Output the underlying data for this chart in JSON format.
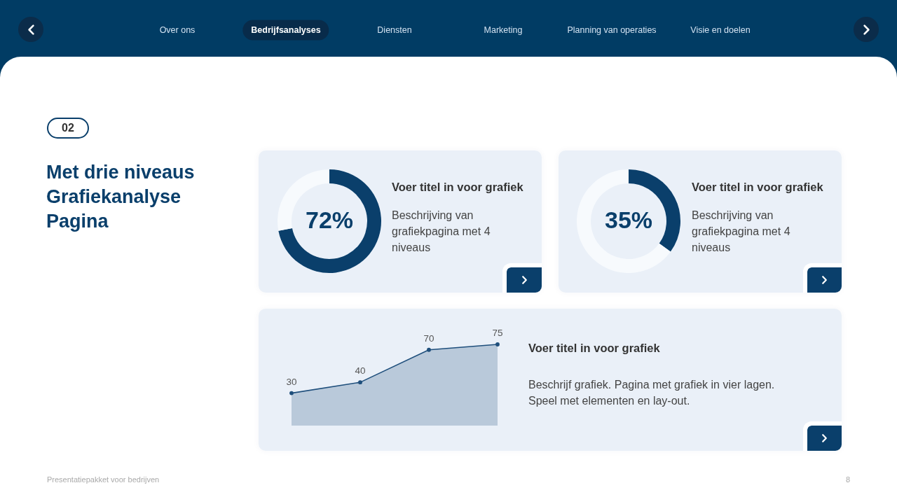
{
  "chart_data": [
    {
      "type": "other",
      "annotations": [
        "Over ons",
        "Bedrijfsanalyses",
        "Diensten",
        "Marketing",
        "Planning van operaties",
        "Visie en doelen"
      ]
    },
    {
      "type": "other",
      "title": "Met drie niveaus Grafiekanalyse Pagina",
      "annotations": [
        "02",
        "Presentatiepakket voor bedrijven",
        "8"
      ]
    },
    {
      "type": "donut",
      "title": "Voer titel in voor grafiek",
      "subtitle": "Beschrijving van grafiekpagina met 4 niveaus",
      "categories": [
        null,
        null
      ],
      "values": [
        72,
        28
      ],
      "colors": [
        "#0a3f6b",
        "#f7fafd"
      ],
      "value_labels": [
        "72%",
        null
      ]
    },
    {
      "type": "donut",
      "title": "Voer titel in voor grafiek",
      "subtitle": "Beschrijving van grafiekpagina met 4 niveaus",
      "categories": [
        null,
        null
      ],
      "values": [
        35,
        65
      ],
      "colors": [
        "#0a3f6b",
        "#f7fafd"
      ],
      "value_labels": [
        "35%",
        null
      ]
    },
    {
      "type": "area",
      "title": "Voer titel in voor grafiek",
      "subtitle": "Beschrijf grafiek. Pagina met grafiek in vier lagen. Speel met elementen en lay-out.",
      "categories": [
        null,
        null,
        null,
        null
      ],
      "values": [
        30,
        40,
        70,
        75
      ],
      "color": "#1f4f7c",
      "data_labels": true,
      "marker": "circle"
    }
  ]
}
